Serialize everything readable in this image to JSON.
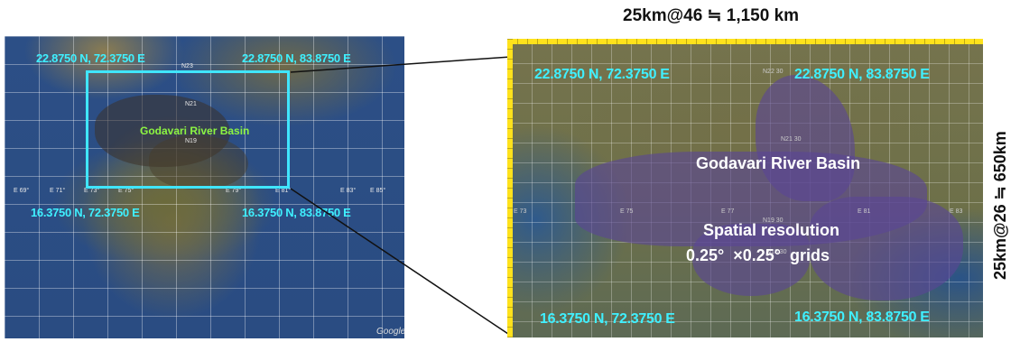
{
  "dimensions": {
    "width_label": "25km@46 ≒ 1,150  km",
    "height_label": "25km@26 ≒ 650km"
  },
  "left_map": {
    "basin_label": "Godavari River Basin",
    "corners": {
      "top_left": "22.8750 N, 72.3750 E",
      "top_right": "22.8750 N, 83.8750 E",
      "bottom_left": "16.3750 N, 72.3750 E",
      "bottom_right": "16.3750 N, 83.8750 E"
    },
    "lat_ticks": [
      "N23",
      "N21",
      "N19"
    ],
    "lon_ticks": [
      "E 69°",
      "E 71°",
      "E 73°",
      "E 75°",
      "E 79°",
      "E 81°",
      "E 83°",
      "E 85°"
    ],
    "attribution": "Google",
    "bbox_color": "#00e5ff"
  },
  "right_map": {
    "basin_label": "Godavari River Basin",
    "resolution_title": "Spatial resolution",
    "resolution_value": "0.25°  ×0.25°  grids",
    "corners": {
      "top_left": "22.8750 N, 72.3750 E",
      "top_right": "22.8750 N, 83.8750 E",
      "bottom_left": "16.3750 N, 72.3750 E",
      "bottom_right": "16.3750 N, 83.8750 E"
    },
    "lat_ticks": [
      "N22 30",
      "N21 30",
      "N19 30",
      "N18 30"
    ],
    "lon_ticks": [
      "E 73",
      "E 75",
      "E 77",
      "E 81",
      "E 83"
    ],
    "ruler_color": "#ffe21c",
    "basin_color": "#5a4696"
  }
}
